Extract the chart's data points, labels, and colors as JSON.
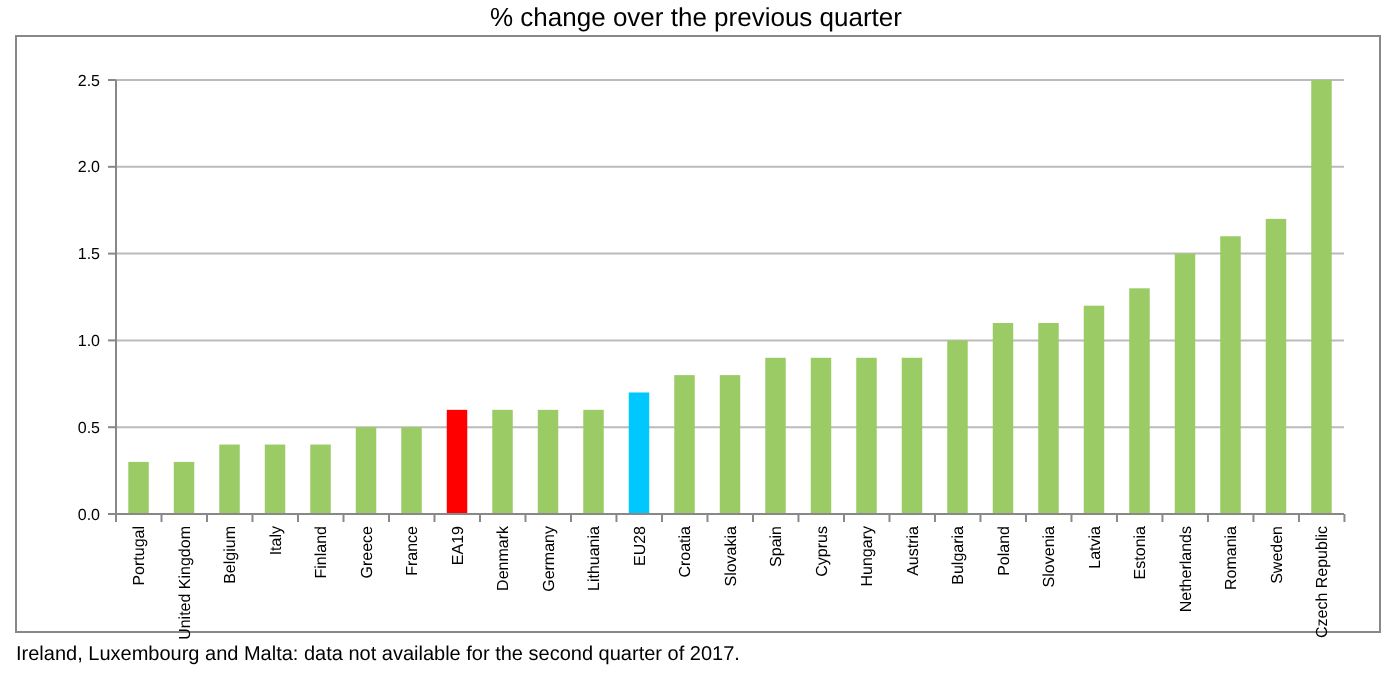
{
  "chart_data": {
    "type": "bar",
    "title": "% change over the previous quarter",
    "categories": [
      "Portugal",
      "United Kingdom",
      "Belgium",
      "Italy",
      "Finland",
      "Greece",
      "France",
      "EA19",
      "Denmark",
      "Germany",
      "Lithuania",
      "EU28",
      "Croatia",
      "Slovakia",
      "Spain",
      "Cyprus",
      "Hungary",
      "Austria",
      "Bulgaria",
      "Poland",
      "Slovenia",
      "Latvia",
      "Estonia",
      "Netherlands",
      "Romania",
      "Sweden",
      "Czech Republic"
    ],
    "values": [
      0.3,
      0.3,
      0.4,
      0.4,
      0.4,
      0.5,
      0.5,
      0.6,
      0.6,
      0.6,
      0.6,
      0.7,
      0.8,
      0.8,
      0.9,
      0.9,
      0.9,
      0.9,
      1.0,
      1.1,
      1.1,
      1.2,
      1.3,
      1.5,
      1.6,
      1.7,
      2.5
    ],
    "colors": [
      "#9bcb64",
      "#9bcb64",
      "#9bcb64",
      "#9bcb64",
      "#9bcb64",
      "#9bcb64",
      "#9bcb64",
      "#ff0000",
      "#9bcb64",
      "#9bcb64",
      "#9bcb64",
      "#00c8ff",
      "#9bcb64",
      "#9bcb64",
      "#9bcb64",
      "#9bcb64",
      "#9bcb64",
      "#9bcb64",
      "#9bcb64",
      "#9bcb64",
      "#9bcb64",
      "#9bcb64",
      "#9bcb64",
      "#9bcb64",
      "#9bcb64",
      "#9bcb64",
      "#9bcb64"
    ],
    "ylim": [
      0,
      2.5
    ],
    "yticks": [
      {
        "value": 0,
        "label": "0.0"
      },
      {
        "value": 0.5,
        "label": "0.5"
      },
      {
        "value": 1,
        "label": "1.0"
      },
      {
        "value": 1.5,
        "label": "1.5"
      },
      {
        "value": 2,
        "label": "2.0"
      },
      {
        "value": 2.5,
        "label": "2.5"
      }
    ],
    "grid": "y",
    "annotations": [
      "Ireland, Luxembourg and Malta: data not available for the second quarter of 2017."
    ]
  }
}
